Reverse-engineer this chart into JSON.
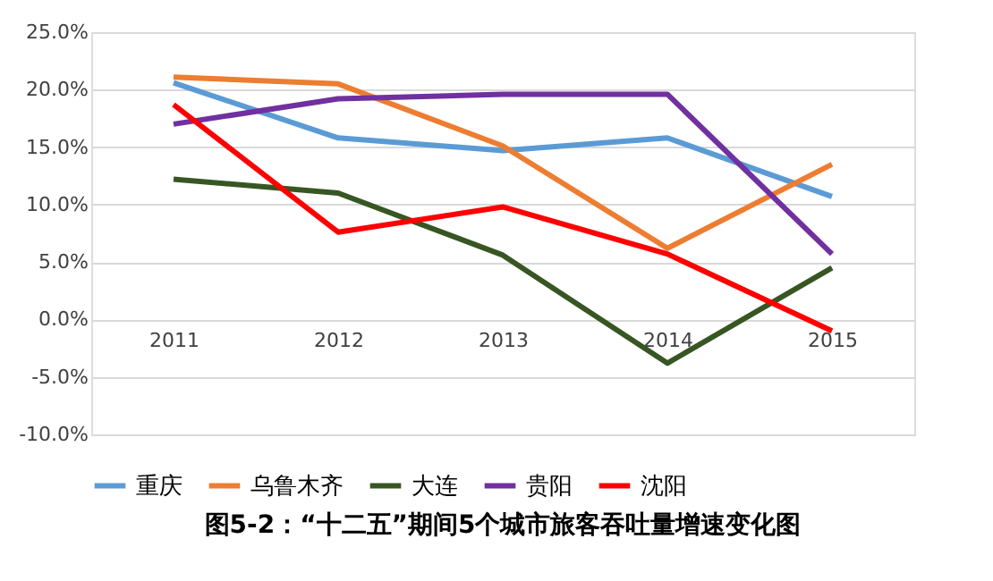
{
  "chart_data": {
    "type": "line",
    "title": "图5-2：“十二五”期间5个城市旅客吞吐量增速变化图",
    "categories": [
      "2011",
      "2012",
      "2013",
      "2014",
      "2015"
    ],
    "series": [
      {
        "name": "重庆",
        "color": "#5b9bd5",
        "values": [
          20.6,
          15.8,
          14.7,
          15.8,
          10.7
        ]
      },
      {
        "name": "乌鲁木齐",
        "color": "#ed7d31",
        "values": [
          21.1,
          20.5,
          15.1,
          6.2,
          13.5
        ]
      },
      {
        "name": "大连",
        "color": "#375623",
        "values": [
          12.2,
          11.0,
          5.6,
          -3.8,
          4.5
        ]
      },
      {
        "name": "贵阳",
        "color": "#7030a0",
        "values": [
          17.0,
          19.2,
          19.6,
          19.6,
          5.7
        ]
      },
      {
        "name": "沈阳",
        "color": "#ff0000",
        "values": [
          18.7,
          7.6,
          9.8,
          5.7,
          -1.0
        ]
      }
    ],
    "ylim": [
      -10,
      25
    ],
    "yticks": [
      {
        "value": -10,
        "label": "-10.0%"
      },
      {
        "value": -5,
        "label": "-5.0%"
      },
      {
        "value": 0,
        "label": "0.0%"
      },
      {
        "value": 5,
        "label": "5.0%"
      },
      {
        "value": 10,
        "label": "10.0%"
      },
      {
        "value": 15,
        "label": "15.0%"
      },
      {
        "value": 20,
        "label": "20.0%"
      },
      {
        "value": 25,
        "label": "25.0%"
      }
    ],
    "grid": "y",
    "legend": "bottom",
    "marker": "none",
    "line_style": "solid"
  }
}
